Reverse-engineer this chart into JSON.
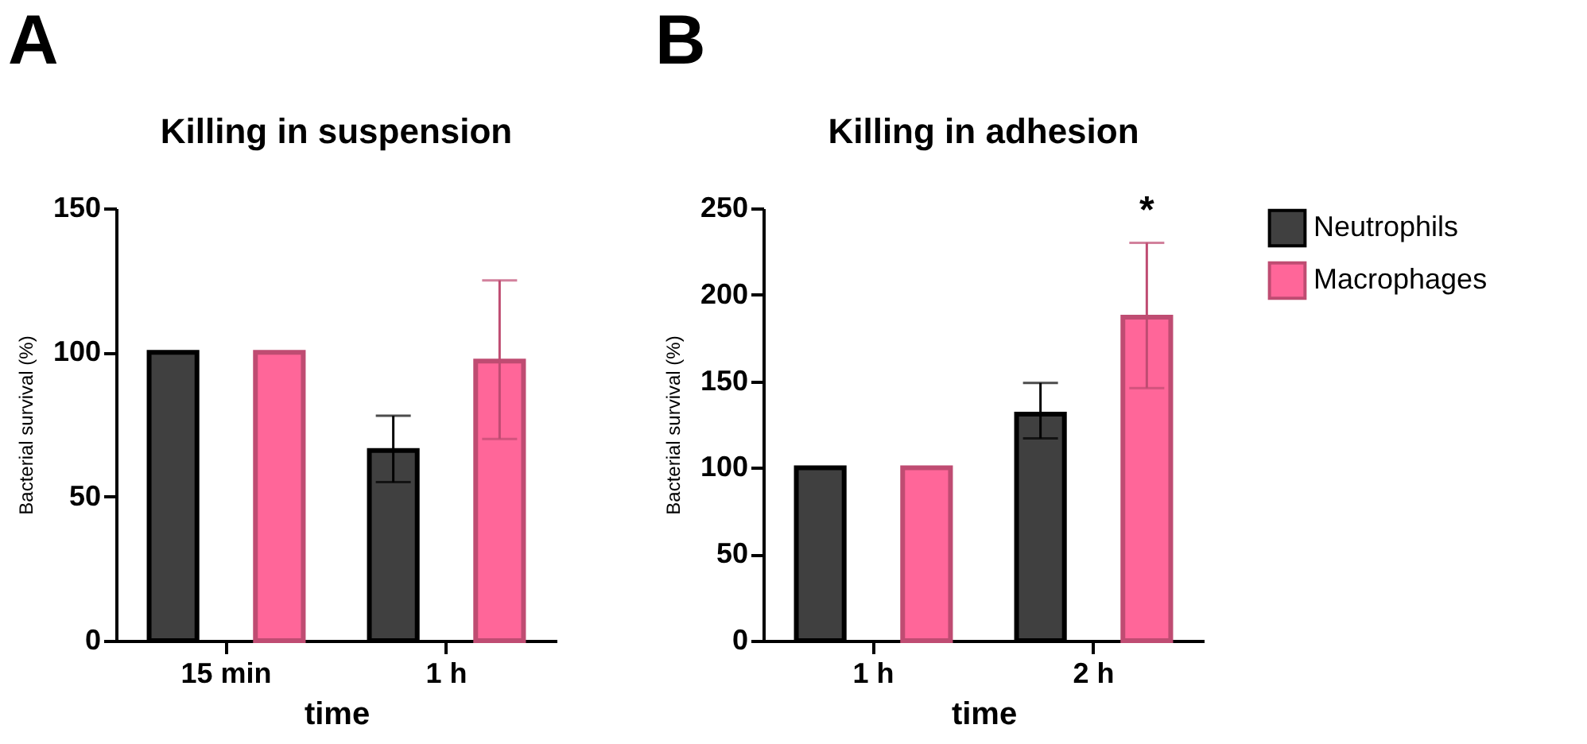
{
  "chart_data": [
    {
      "type": "bar",
      "title": "Killing in suspension",
      "xlabel": "time",
      "ylabel": "Bacterial survival (%)",
      "categories": [
        "15 min",
        "1 h"
      ],
      "series": [
        {
          "color": "#404040",
          "values": [
            100,
            66
          ],
          "errors": [
            null,
            [
              55,
              78
            ]
          ]
        },
        {
          "color": "#ff6699",
          "values": [
            100,
            97
          ],
          "errors": [
            null,
            [
              70,
              125
            ]
          ]
        }
      ],
      "ylim": [
        0,
        150
      ],
      "yticks": [
        0,
        50,
        100,
        150
      ],
      "grid": false,
      "annotations": [
        "A"
      ]
    },
    {
      "type": "bar",
      "title": "Killing in adhesion",
      "xlabel": "time",
      "ylabel": "Bacterial survival (%)",
      "categories": [
        "1 h",
        "2 h"
      ],
      "series": [
        {
          "name": "Neutrophils",
          "color": "#404040",
          "values": [
            100,
            131
          ],
          "errors": [
            null,
            [
              117,
              149
            ]
          ]
        },
        {
          "name": "Macrophages",
          "color": "#ff6699",
          "values": [
            100,
            187
          ],
          "errors": [
            null,
            [
              146,
              230
            ]
          ]
        }
      ],
      "ylim": [
        0,
        250
      ],
      "yticks": [
        0,
        50,
        100,
        150,
        200,
        250
      ],
      "grid": false,
      "legend": "right",
      "annotations": [
        "B",
        "*"
      ]
    }
  ]
}
